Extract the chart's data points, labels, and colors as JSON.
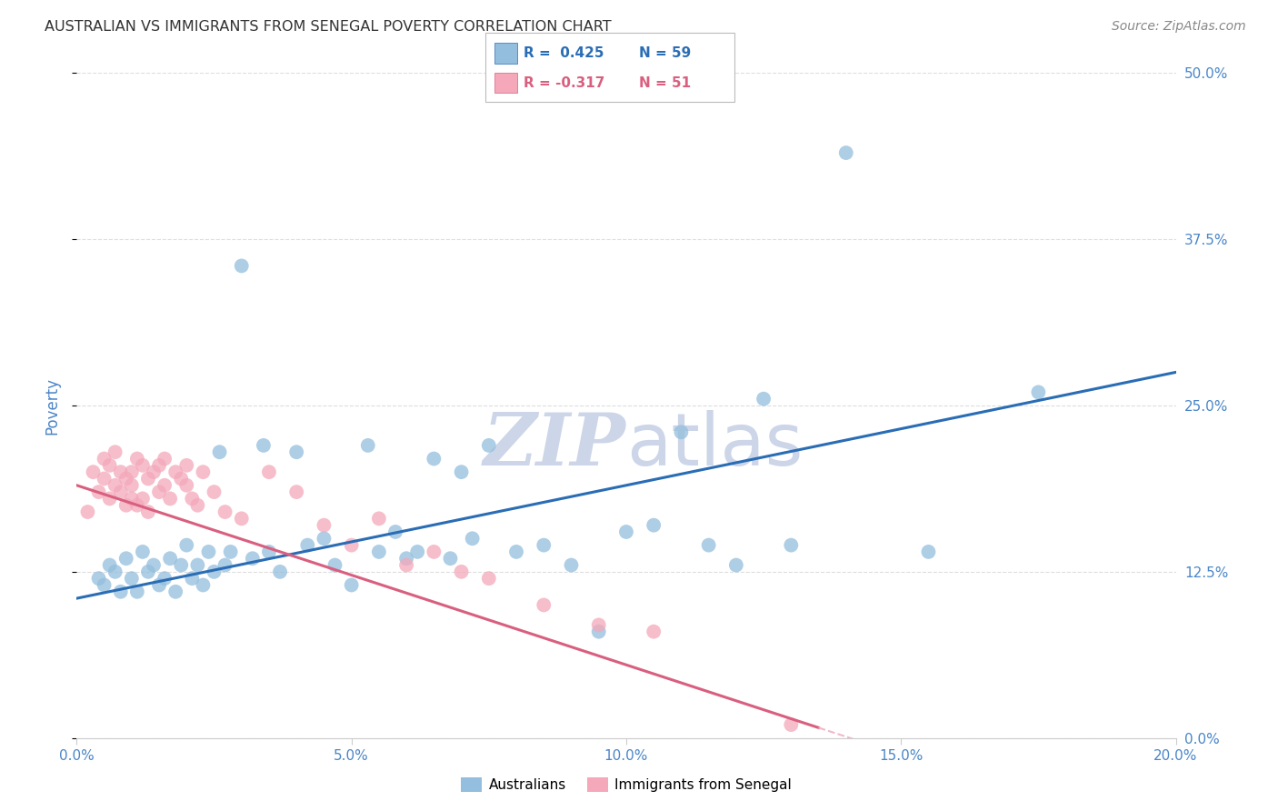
{
  "title": "AUSTRALIAN VS IMMIGRANTS FROM SENEGAL POVERTY CORRELATION CHART",
  "source": "Source: ZipAtlas.com",
  "ylabel": "Poverty",
  "xlabel_ticks": [
    "0.0%",
    "5.0%",
    "10.0%",
    "15.0%",
    "20.0%"
  ],
  "xlabel_vals": [
    0.0,
    5.0,
    10.0,
    15.0,
    20.0
  ],
  "ylabel_ticks": [
    "0.0%",
    "12.5%",
    "25.0%",
    "37.5%",
    "50.0%"
  ],
  "ylabel_vals": [
    0.0,
    12.5,
    25.0,
    37.5,
    50.0
  ],
  "xlim": [
    0.0,
    20.0
  ],
  "ylim": [
    0.0,
    50.0
  ],
  "blue_color": "#93bedd",
  "pink_color": "#f4a8ba",
  "blue_line_color": "#2a6db5",
  "pink_line_color": "#d95f7f",
  "pink_dash_color": "#f0b8c8",
  "watermark_color": "#ccd6e8",
  "title_color": "#333333",
  "axis_label_color": "#4a86c8",
  "grid_color": "#dddddd",
  "aus_intercept": 10.5,
  "aus_slope": 0.85,
  "sen_intercept": 19.0,
  "sen_slope": -1.35,
  "sen_solid_xmax": 13.5,
  "australians_x": [
    0.4,
    0.5,
    0.6,
    0.7,
    0.8,
    0.9,
    1.0,
    1.1,
    1.2,
    1.3,
    1.4,
    1.5,
    1.6,
    1.7,
    1.8,
    1.9,
    2.0,
    2.1,
    2.2,
    2.3,
    2.4,
    2.5,
    2.6,
    2.7,
    2.8,
    3.0,
    3.2,
    3.4,
    3.5,
    3.7,
    4.0,
    4.2,
    4.5,
    4.7,
    5.0,
    5.3,
    5.5,
    5.8,
    6.0,
    6.2,
    6.5,
    6.8,
    7.0,
    7.2,
    7.5,
    8.0,
    8.5,
    9.0,
    9.5,
    10.0,
    10.5,
    11.0,
    11.5,
    12.0,
    12.5,
    13.0,
    14.0,
    15.5,
    17.5
  ],
  "australians_y": [
    12.0,
    11.5,
    13.0,
    12.5,
    11.0,
    13.5,
    12.0,
    11.0,
    14.0,
    12.5,
    13.0,
    11.5,
    12.0,
    13.5,
    11.0,
    13.0,
    14.5,
    12.0,
    13.0,
    11.5,
    14.0,
    12.5,
    21.5,
    13.0,
    14.0,
    35.5,
    13.5,
    22.0,
    14.0,
    12.5,
    21.5,
    14.5,
    15.0,
    13.0,
    11.5,
    22.0,
    14.0,
    15.5,
    13.5,
    14.0,
    21.0,
    13.5,
    20.0,
    15.0,
    22.0,
    14.0,
    14.5,
    13.0,
    8.0,
    15.5,
    16.0,
    23.0,
    14.5,
    13.0,
    25.5,
    14.5,
    44.0,
    14.0,
    26.0
  ],
  "senegal_x": [
    0.2,
    0.3,
    0.4,
    0.5,
    0.5,
    0.6,
    0.6,
    0.7,
    0.7,
    0.8,
    0.8,
    0.9,
    0.9,
    1.0,
    1.0,
    1.0,
    1.1,
    1.1,
    1.2,
    1.2,
    1.3,
    1.3,
    1.4,
    1.5,
    1.5,
    1.6,
    1.6,
    1.7,
    1.8,
    1.9,
    2.0,
    2.0,
    2.1,
    2.2,
    2.3,
    2.5,
    2.7,
    3.0,
    3.5,
    4.0,
    4.5,
    5.0,
    5.5,
    6.0,
    6.5,
    7.0,
    7.5,
    8.5,
    9.5,
    10.5,
    13.0
  ],
  "senegal_y": [
    17.0,
    20.0,
    18.5,
    19.5,
    21.0,
    18.0,
    20.5,
    19.0,
    21.5,
    18.5,
    20.0,
    19.5,
    17.5,
    20.0,
    19.0,
    18.0,
    21.0,
    17.5,
    20.5,
    18.0,
    19.5,
    17.0,
    20.0,
    20.5,
    18.5,
    19.0,
    21.0,
    18.0,
    20.0,
    19.5,
    19.0,
    20.5,
    18.0,
    17.5,
    20.0,
    18.5,
    17.0,
    16.5,
    20.0,
    18.5,
    16.0,
    14.5,
    16.5,
    13.0,
    14.0,
    12.5,
    12.0,
    10.0,
    8.5,
    8.0,
    1.0
  ]
}
